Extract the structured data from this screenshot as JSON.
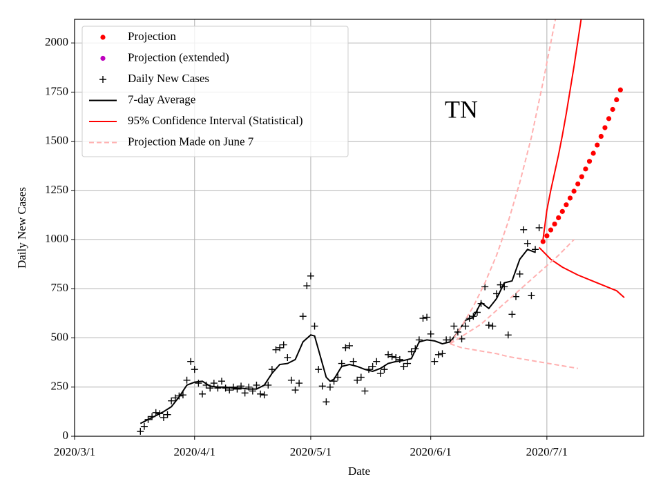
{
  "chart_data": {
    "type": "line",
    "annotation": "TN",
    "x_label": "Date",
    "y_label": "Daily New Cases",
    "xlim": [
      "2020/3/1",
      "2020/7/26"
    ],
    "xticks": [
      "2020/3/1",
      "2020/4/1",
      "2020/5/1",
      "2020/6/1",
      "2020/7/1"
    ],
    "ylim": [
      0,
      2120
    ],
    "yticks": [
      0,
      250,
      500,
      750,
      1000,
      1250,
      1500,
      1750,
      2000
    ],
    "grid": true,
    "legend": "upper left",
    "series": [
      {
        "name": "Projection",
        "color": "#ff0000",
        "marker": "dot",
        "linestyle": null,
        "lines": [
          {
            "x": [
              "2020/6/30",
              "2020/7/1",
              "2020/7/2",
              "2020/7/3",
              "2020/7/4",
              "2020/7/5",
              "2020/7/6",
              "2020/7/7",
              "2020/7/8",
              "2020/7/9",
              "2020/7/10",
              "2020/7/11",
              "2020/7/12",
              "2020/7/13",
              "2020/7/14",
              "2020/7/15",
              "2020/7/16",
              "2020/7/17",
              "2020/7/18",
              "2020/7/19",
              "2020/7/20"
            ],
            "values": [
              990,
              1019,
              1049,
              1079,
              1111,
              1143,
              1177,
              1211,
              1246,
              1283,
              1320,
              1359,
              1398,
              1439,
              1481,
              1525,
              1569,
              1615,
              1662,
              1711,
              1761
            ]
          }
        ]
      },
      {
        "name": "Projection (extended)",
        "color": "#bf00bf",
        "marker": "dot",
        "linestyle": null,
        "lines": []
      },
      {
        "name": "Daily New Cases",
        "color": "#000000",
        "marker": "plus",
        "linestyle": null,
        "lines": [
          {
            "x": [
              "2020/3/18",
              "2020/3/19",
              "2020/3/20",
              "2020/3/21",
              "2020/3/22",
              "2020/3/23",
              "2020/3/24",
              "2020/3/25",
              "2020/3/26",
              "2020/3/27",
              "2020/3/28",
              "2020/3/29",
              "2020/3/30",
              "2020/3/31",
              "2020/4/1",
              "2020/4/2",
              "2020/4/3",
              "2020/4/4",
              "2020/4/5",
              "2020/4/6",
              "2020/4/7",
              "2020/4/8",
              "2020/4/9",
              "2020/4/10",
              "2020/4/11",
              "2020/4/12",
              "2020/4/13",
              "2020/4/14",
              "2020/4/15",
              "2020/4/16",
              "2020/4/17",
              "2020/4/18",
              "2020/4/19",
              "2020/4/20",
              "2020/4/21",
              "2020/4/22",
              "2020/4/23",
              "2020/4/24",
              "2020/4/25",
              "2020/4/26",
              "2020/4/27",
              "2020/4/28",
              "2020/4/29",
              "2020/4/30",
              "2020/5/1",
              "2020/5/2",
              "2020/5/3",
              "2020/5/4",
              "2020/5/5",
              "2020/5/6",
              "2020/5/7",
              "2020/5/8",
              "2020/5/9",
              "2020/5/10",
              "2020/5/11",
              "2020/5/12",
              "2020/5/13",
              "2020/5/14",
              "2020/5/15",
              "2020/5/16",
              "2020/5/17",
              "2020/5/18",
              "2020/5/19",
              "2020/5/20",
              "2020/5/21",
              "2020/5/22",
              "2020/5/23",
              "2020/5/24",
              "2020/5/25",
              "2020/5/26",
              "2020/5/27",
              "2020/5/28",
              "2020/5/29",
              "2020/5/30",
              "2020/5/31",
              "2020/6/1",
              "2020/6/2",
              "2020/6/3",
              "2020/6/4",
              "2020/6/5",
              "2020/6/6",
              "2020/6/7",
              "2020/6/8",
              "2020/6/9",
              "2020/6/10",
              "2020/6/11",
              "2020/6/12",
              "2020/6/13",
              "2020/6/14",
              "2020/6/15",
              "2020/6/16",
              "2020/6/17",
              "2020/6/18",
              "2020/6/19",
              "2020/6/20",
              "2020/6/21",
              "2020/6/22",
              "2020/6/23",
              "2020/6/24",
              "2020/6/25",
              "2020/6/26",
              "2020/6/27",
              "2020/6/28",
              "2020/6/29"
            ],
            "values": [
              25,
              50,
              85,
              100,
              120,
              115,
              95,
              110,
              180,
              195,
              205,
              210,
              285,
              380,
              340,
              270,
              215,
              260,
              245,
              270,
              245,
              280,
              245,
              235,
              250,
              240,
              255,
              220,
              250,
              230,
              260,
              215,
              210,
              260,
              340,
              440,
              450,
              465,
              400,
              285,
              235,
              270,
              610,
              765,
              815,
              560,
              340,
              255,
              175,
              250,
              280,
              300,
              370,
              450,
              460,
              380,
              285,
              300,
              230,
              340,
              355,
              380,
              320,
              340,
              415,
              405,
              400,
              390,
              355,
              370,
              430,
              445,
              490,
              600,
              605,
              520,
              380,
              415,
              420,
              490,
              490,
              560,
              530,
              495,
              560,
              600,
              610,
              630,
              675,
              760,
              565,
              560,
              725,
              770,
              760,
              515,
              620,
              710,
              825,
              1050,
              980,
              715,
              950,
              1060
            ]
          }
        ]
      },
      {
        "name": "7-day Average",
        "color": "#000000",
        "marker": null,
        "linestyle": "solid",
        "lines": [
          {
            "x": [
              "2020/3/18",
              "2020/3/20",
              "2020/3/22",
              "2020/3/24",
              "2020/3/26",
              "2020/3/28",
              "2020/3/30",
              "2020/4/1",
              "2020/4/3",
              "2020/4/5",
              "2020/4/7",
              "2020/4/9",
              "2020/4/11",
              "2020/4/13",
              "2020/4/15",
              "2020/4/17",
              "2020/4/19",
              "2020/4/21",
              "2020/4/23",
              "2020/4/25",
              "2020/4/27",
              "2020/4/29",
              "2020/5/1",
              "2020/5/2",
              "2020/5/3",
              "2020/5/5",
              "2020/5/6",
              "2020/5/7",
              "2020/5/9",
              "2020/5/11",
              "2020/5/13",
              "2020/5/15",
              "2020/5/17",
              "2020/5/19",
              "2020/5/21",
              "2020/5/23",
              "2020/5/25",
              "2020/5/27",
              "2020/5/29",
              "2020/5/31",
              "2020/6/2",
              "2020/6/4",
              "2020/6/6",
              "2020/6/8",
              "2020/6/10",
              "2020/6/12",
              "2020/6/14",
              "2020/6/16",
              "2020/6/18",
              "2020/6/20",
              "2020/6/22",
              "2020/6/24",
              "2020/6/26",
              "2020/6/28"
            ],
            "values": [
              65,
              85,
              105,
              125,
              150,
              200,
              260,
              275,
              280,
              255,
              250,
              250,
              245,
              245,
              240,
              240,
              260,
              320,
              365,
              370,
              390,
              480,
              515,
              510,
              440,
              300,
              280,
              290,
              355,
              365,
              355,
              340,
              330,
              345,
              370,
              380,
              385,
              395,
              480,
              490,
              485,
              470,
              480,
              530,
              590,
              605,
              680,
              650,
              700,
              780,
              790,
              900,
              950,
              935
            ]
          }
        ]
      },
      {
        "name": "95% Confidence Interval (Statistical)",
        "color": "#ff0000",
        "marker": null,
        "linestyle": "solid",
        "lines": [
          {
            "x": [
              "2020/6/30",
              "2020/7/1",
              "2020/7/2",
              "2020/7/3",
              "2020/7/4",
              "2020/7/5",
              "2020/7/6",
              "2020/7/7",
              "2020/7/8",
              "2020/7/9",
              "2020/7/10"
            ],
            "values": [
              1000,
              1150,
              1250,
              1340,
              1430,
              1530,
              1640,
              1760,
              1880,
              2010,
              2140
            ]
          },
          {
            "x": [
              "2020/6/29",
              "2020/7/2",
              "2020/7/5",
              "2020/7/9",
              "2020/7/14",
              "2020/7/19",
              "2020/7/21"
            ],
            "values": [
              960,
              900,
              860,
              820,
              780,
              740,
              705
            ]
          }
        ]
      },
      {
        "name": "Projection Made on June 7",
        "color": "#ffb0b0",
        "marker": null,
        "linestyle": "dashed",
        "lines": [
          {
            "x": [
              "2020/6/6",
              "2020/6/9",
              "2020/6/12",
              "2020/6/15",
              "2020/6/18",
              "2020/6/21",
              "2020/6/24",
              "2020/6/27",
              "2020/6/30",
              "2020/7/2",
              "2020/7/4"
            ],
            "values": [
              470,
              560,
              660,
              780,
              920,
              1090,
              1290,
              1520,
              1800,
              2000,
              2200
            ]
          },
          {
            "x": [
              "2020/6/6",
              "2020/6/10",
              "2020/6/14",
              "2020/6/18",
              "2020/6/22",
              "2020/6/26",
              "2020/6/30",
              "2020/7/4",
              "2020/7/8"
            ],
            "values": [
              470,
              520,
              570,
              640,
              710,
              780,
              850,
              920,
              1000
            ]
          },
          {
            "x": [
              "2020/6/6",
              "2020/6/9",
              "2020/6/12",
              "2020/6/15",
              "2020/6/18",
              "2020/6/21",
              "2020/6/24",
              "2020/6/27",
              "2020/6/30",
              "2020/7/3",
              "2020/7/6",
              "2020/7/9"
            ],
            "values": [
              470,
              450,
              440,
              430,
              420,
              405,
              395,
              385,
              375,
              365,
              355,
              345
            ]
          }
        ]
      }
    ]
  }
}
